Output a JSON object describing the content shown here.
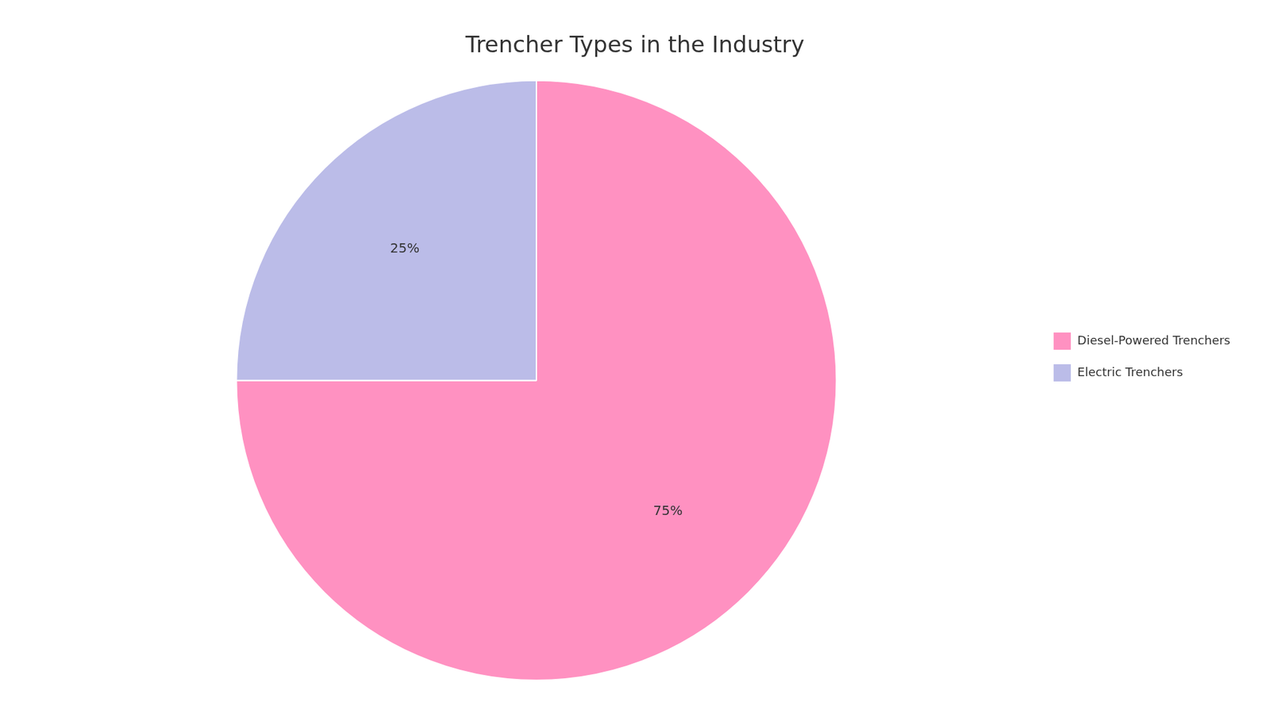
{
  "chart_data": {
    "type": "pie",
    "title": "Trencher Types in the Industry",
    "categories": [
      "Diesel-Powered Trenchers",
      "Electric Trenchers"
    ],
    "values": [
      75,
      25
    ],
    "value_labels": [
      "75%",
      "25%"
    ],
    "colors": [
      "#FF91C1",
      "#BBBCE8"
    ],
    "data_labels": true,
    "legend": "right"
  }
}
